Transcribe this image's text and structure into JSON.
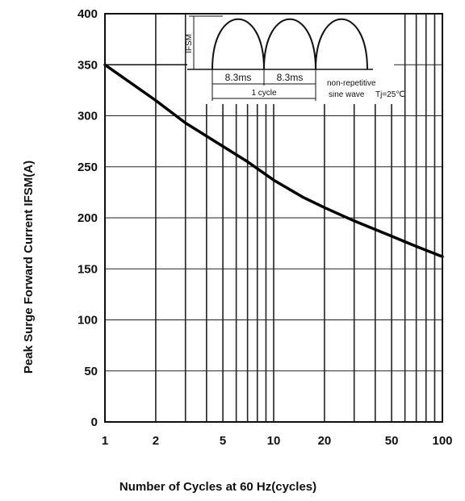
{
  "chart_data": {
    "type": "line",
    "x_scale": "log",
    "xlim": [
      1,
      100
    ],
    "ylim": [
      0,
      400
    ],
    "xlabel": "Number  of  Cycles  at  60  Hz(cycles)",
    "ylabel": "Peak Surge Forward Current IFSM(A)",
    "x_ticks": [
      1,
      2,
      5,
      10,
      20,
      50,
      100
    ],
    "x_tick_labels": [
      "1",
      "2",
      "5",
      "10",
      "20",
      "50",
      "100"
    ],
    "y_ticks": [
      0,
      50,
      100,
      150,
      200,
      250,
      300,
      350,
      400
    ],
    "y_tick_labels": [
      "0",
      "50",
      "100",
      "150",
      "200",
      "250",
      "300",
      "350",
      "400"
    ],
    "grid": true,
    "x_grid_lines": [
      1,
      2,
      3,
      4,
      5,
      6,
      7,
      8,
      9,
      10,
      20,
      30,
      40,
      50,
      60,
      70,
      80,
      90,
      100
    ],
    "series": [
      {
        "x": [
          1,
          2,
          3,
          5,
          7,
          10,
          15,
          20,
          30,
          50,
          70,
          100
        ],
        "y": [
          350,
          315,
          293,
          270,
          255,
          237,
          220,
          210,
          197,
          182,
          172,
          162
        ]
      }
    ],
    "reference_line": {
      "y": 350
    },
    "inset": {
      "ifsm_label": "IFSM",
      "period_label_1": "8.3ms",
      "period_label_2": "8.3ms",
      "cycle_label": "1 cycle",
      "note_line1": "non-repetitive",
      "note_line2": "sine wave",
      "temp_label": "Tj=25℃"
    }
  }
}
